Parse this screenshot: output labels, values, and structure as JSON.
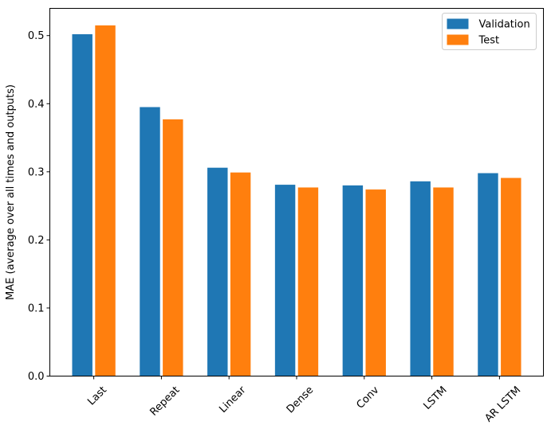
{
  "figure": {
    "background": "#ffffff",
    "axis_color": "#000000",
    "legend_border_color": "#cccccc",
    "legend_background": "#ffffff"
  },
  "chart_data": {
    "type": "bar",
    "title": "",
    "xlabel": "",
    "ylabel": "MAE (average over all times and outputs)",
    "categories": [
      "Last",
      "Repeat",
      "Linear",
      "Dense",
      "Conv",
      "LSTM",
      "AR LSTM"
    ],
    "series": [
      {
        "name": "Validation",
        "color": "#1f77b4",
        "values": [
          0.502,
          0.395,
          0.306,
          0.281,
          0.28,
          0.286,
          0.298
        ]
      },
      {
        "name": "Test",
        "color": "#ff7f0e",
        "values": [
          0.515,
          0.377,
          0.299,
          0.277,
          0.274,
          0.277,
          0.291
        ]
      }
    ],
    "ylim": [
      0,
      0.54
    ],
    "ytick_values": [
      0.0,
      0.1,
      0.2,
      0.3,
      0.4,
      0.5
    ],
    "ytick_labels": [
      "0.0",
      "0.1",
      "0.2",
      "0.3",
      "0.4",
      "0.5"
    ],
    "xtick_rotation_deg": 45,
    "grid": false,
    "legend_position": "upper right",
    "bar_width_units": 0.3,
    "bar_offset_units": 0.17,
    "group_span_units": 7.3
  }
}
